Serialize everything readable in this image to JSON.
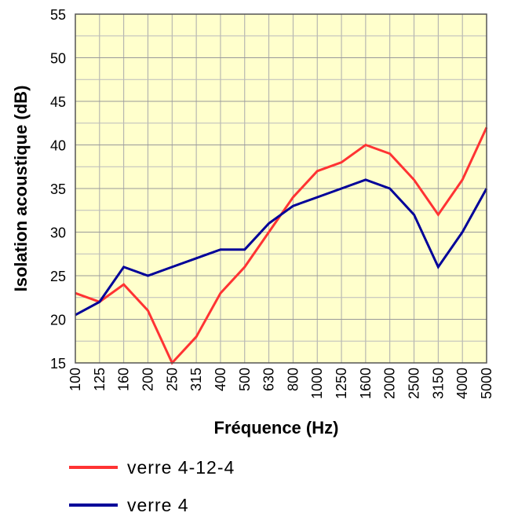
{
  "chart_data": {
    "type": "line",
    "xlabel": "Fréquence (Hz)",
    "ylabel": "Isolation acoustique (dB)",
    "ylim": [
      15,
      55
    ],
    "yticks": [
      "15",
      "20",
      "25",
      "30",
      "35",
      "40",
      "45",
      "50",
      "55"
    ],
    "categories": [
      "100",
      "125",
      "160",
      "200",
      "250",
      "315",
      "400",
      "500",
      "630",
      "800",
      "1000",
      "1250",
      "1600",
      "2000",
      "2500",
      "3150",
      "4000",
      "5000"
    ],
    "grid": true,
    "legend_position": "bottom",
    "plot_background": "#ffffcc",
    "series": [
      {
        "name": "verre 4-12-4",
        "color": "#ff3333",
        "values": [
          23,
          22,
          24,
          21,
          15,
          18,
          23,
          26,
          30,
          34,
          37,
          38,
          40,
          39,
          36,
          32,
          36,
          42
        ]
      },
      {
        "name": "verre 4",
        "color": "#000099",
        "values": [
          20.5,
          22,
          26,
          25,
          26,
          27,
          28,
          28,
          31,
          33,
          34,
          35,
          36,
          35,
          32,
          26,
          30,
          35
        ]
      }
    ]
  }
}
